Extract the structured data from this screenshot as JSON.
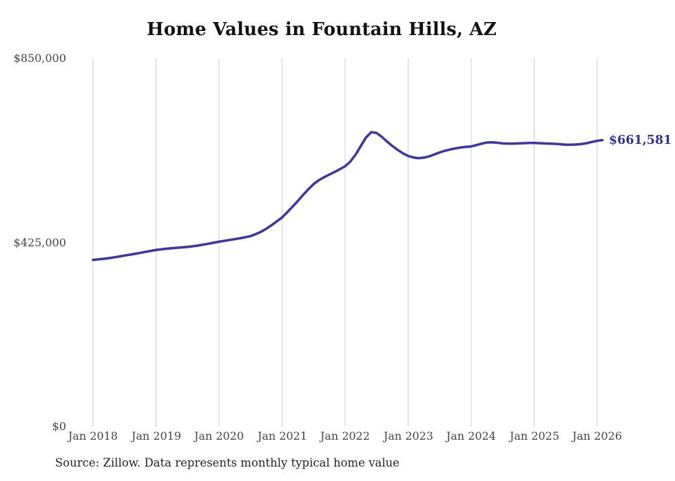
{
  "title": "Home Values in Fountain Hills, AZ",
  "source_note": "Source: Zillow. Data represents monthly typical home value",
  "end_label": "$661,581",
  "colors": {
    "line": "#3d36a3",
    "end_label": "#312d91",
    "grid": "#cccccc",
    "axis_text": "#444444",
    "title_text": "#121212",
    "source_text": "#222222",
    "background": "#ffffff"
  },
  "y_axis": {
    "min": 0,
    "max": 850000,
    "ticks": [
      {
        "label": "$850,000",
        "value": 850000
      },
      {
        "label": "$425,000",
        "value": 425000
      },
      {
        "label": "$0",
        "value": 0
      }
    ]
  },
  "x_axis": {
    "ticks": [
      "Jan 2018",
      "Jan 2019",
      "Jan 2020",
      "Jan 2021",
      "Jan 2022",
      "Jan 2023",
      "Jan 2024",
      "Jan 2025",
      "Jan 2026"
    ],
    "months_per_tick": 12
  },
  "chart_data": {
    "type": "line",
    "title": "Home Values in Fountain Hills, AZ",
    "frequency": "monthly",
    "x_start": "2018-01",
    "x_end": "2026-02",
    "ylim": [
      0,
      850000
    ],
    "grid": "vertical-only",
    "legend": "none",
    "final_value": 661581,
    "final_value_label": "$661,581",
    "series": [
      {
        "name": "Typical home value",
        "color": "#3d36a3",
        "values": [
          385000,
          386200,
          387500,
          389000,
          390800,
          392900,
          395000,
          397000,
          399100,
          401200,
          403500,
          405800,
          408000,
          409500,
          410800,
          412000,
          413000,
          414000,
          415000,
          416500,
          418200,
          420200,
          422400,
          424700,
          427000,
          429000,
          431000,
          433000,
          435000,
          437300,
          440000,
          444500,
          450000,
          457000,
          465000,
          474000,
          483000,
          495000,
          508000,
          521000,
          535000,
          548000,
          560000,
          569000,
          576000,
          582000,
          588000,
          594500,
          601000,
          612000,
          628000,
          648000,
          668000,
          680000,
          678000,
          669000,
          658000,
          648000,
          639000,
          631000,
          625000,
          621500,
          620000,
          621000,
          624000,
          628500,
          633000,
          637000,
          640000,
          642500,
          644500,
          646000,
          647000,
          650000,
          653500,
          656000,
          656500,
          655500,
          654000,
          653500,
          653500,
          654000,
          654500,
          655000,
          655000,
          654500,
          654000,
          653500,
          653000,
          652000,
          651000,
          651000,
          651500,
          652500,
          654500,
          657500,
          660000,
          661581
        ]
      }
    ]
  }
}
